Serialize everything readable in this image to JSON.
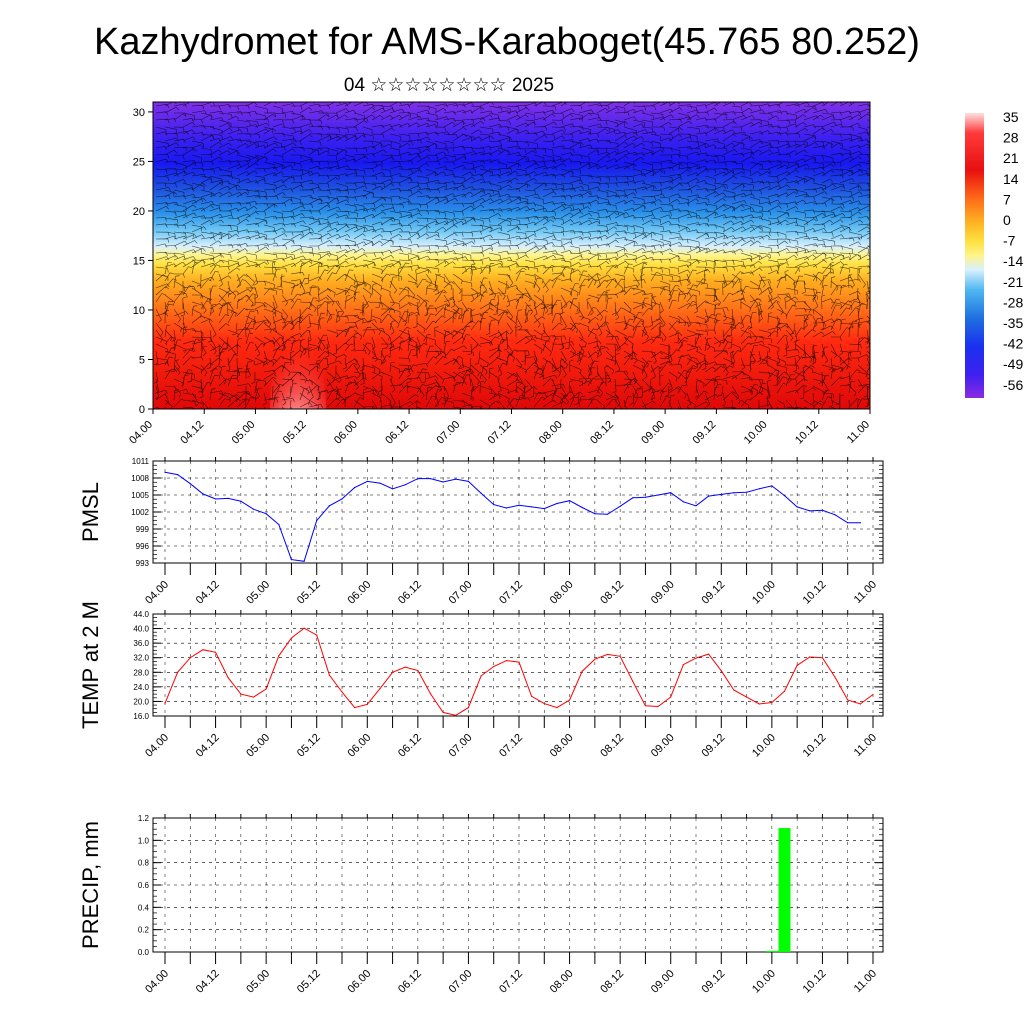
{
  "title": "Kazhydromet for AMS-Karaboget(45.765 80.252)",
  "subtitle": "04 ☆☆☆☆☆☆☆☆ 2025",
  "chart_data": [
    {
      "type": "heatmap",
      "name": "cross-section",
      "x_ticks": [
        "04.00",
        "04.12",
        "05.00",
        "05.12",
        "06.00",
        "06.12",
        "07.00",
        "07.12",
        "08.00",
        "08.12",
        "09.00",
        "09.12",
        "10.00",
        "10.12",
        "11.00"
      ],
      "y_ticks": [
        "0",
        "5",
        "10",
        "15",
        "20",
        "25",
        "30"
      ],
      "ylim": [
        0,
        31
      ],
      "colorbar": {
        "labels": [
          "35",
          "28",
          "21",
          "14",
          "7",
          "0",
          "-7",
          "-14",
          "-21",
          "-28",
          "-35",
          "-42",
          "-49",
          "-56"
        ],
        "colors": [
          "#ffd0d0",
          "#ff3030",
          "#e81010",
          "#f05020",
          "#ff9a20",
          "#ffd030",
          "#fff070",
          "#c0e8ff",
          "#40b8f0",
          "#1e80e0",
          "#1e40e0",
          "#2020f0",
          "#6a20f0",
          "#8a2be2"
        ]
      }
    },
    {
      "type": "line",
      "ylabel": "PMSL",
      "ylim": [
        993,
        1011
      ],
      "y_ticks": [
        "1011",
        "1008",
        "1005",
        "1002",
        "999",
        "996",
        "993"
      ],
      "x_ticks": [
        "04.00",
        "04.12",
        "05.00",
        "05.12",
        "06.00",
        "06.12",
        "07.00",
        "07.12",
        "08.00",
        "08.12",
        "09.00",
        "09.12",
        "10.00",
        "10.12",
        "11.00"
      ],
      "color": "#0000ff",
      "x": [
        0,
        3,
        6,
        9,
        12,
        15,
        18,
        21,
        24,
        27,
        30,
        33,
        36,
        39,
        42,
        45,
        48,
        51,
        54,
        57,
        60,
        63,
        66,
        69,
        72,
        75,
        78,
        81,
        84,
        87,
        90,
        93,
        96,
        99,
        102,
        105,
        108,
        111,
        114,
        117,
        120,
        123,
        126,
        129,
        132,
        135,
        138,
        141,
        144,
        147,
        150,
        153,
        156,
        159,
        162,
        165,
        168
      ],
      "values": [
        1009,
        1008.6,
        1007,
        1005.2,
        1004.3,
        1004.4,
        1003.9,
        1002.5,
        1001.7,
        999.8,
        993.6,
        993.3,
        1000.5,
        1003.1,
        1004.3,
        1006.3,
        1007.4,
        1007.1,
        1006.1,
        1006.8,
        1007.9,
        1007.9,
        1007.3,
        1007.8,
        1007.4,
        1005.3,
        1003.3,
        1002.7,
        1003.2,
        1002.9,
        1002.6,
        1003.5,
        1004,
        1002.8,
        1001.7,
        1001.6,
        1003,
        1004.5,
        1004.6,
        1005,
        1005.4,
        1003.8,
        1003.1,
        1004.8,
        1005.1,
        1005.4,
        1005.5,
        1006.1,
        1006.6,
        1004.9,
        1002.9,
        1002.2,
        1002.3,
        1001.5,
        1000.1,
        1000.1,
        null
      ]
    },
    {
      "type": "line",
      "ylabel": "TEMP at 2 M",
      "ylim": [
        16,
        44
      ],
      "y_ticks": [
        "44.0",
        "40.0",
        "36.0",
        "32.0",
        "28.0",
        "24.0",
        "20.0",
        "16.0"
      ],
      "x_ticks": [
        "04.00",
        "04.12",
        "05.00",
        "05.12",
        "06.00",
        "06.12",
        "07.00",
        "07.12",
        "08.00",
        "08.12",
        "09.00",
        "09.12",
        "10.00",
        "10.12",
        "11.00"
      ],
      "color": "#ff0000",
      "x": [
        0,
        3,
        6,
        9,
        12,
        15,
        18,
        21,
        24,
        27,
        30,
        33,
        36,
        39,
        42,
        45,
        48,
        51,
        54,
        57,
        60,
        63,
        66,
        69,
        72,
        75,
        78,
        81,
        84,
        87,
        90,
        93,
        96,
        99,
        102,
        105,
        108,
        111,
        114,
        117,
        120,
        123,
        126,
        129,
        132,
        135,
        138,
        141,
        144,
        147,
        150,
        153,
        156,
        159,
        162,
        165,
        168
      ],
      "values": [
        19.5,
        28,
        32,
        34.2,
        33.5,
        26.5,
        22,
        21.2,
        23.4,
        32.5,
        37.4,
        40.1,
        38.2,
        27.2,
        22.6,
        18.3,
        19.2,
        23.5,
        28,
        29.4,
        28.5,
        22.1,
        17,
        16.2,
        18.3,
        27,
        29.6,
        31.2,
        30.8,
        21.4,
        19.4,
        18.3,
        20.4,
        28.3,
        31.6,
        32.9,
        32.4,
        25.5,
        18.8,
        18.6,
        21.2,
        30.1,
        31.9,
        33,
        28.4,
        23.1,
        21.2,
        19.3,
        19.7,
        22.8,
        29.9,
        32.2,
        32,
        26.6,
        20.4,
        19.3,
        21.9
      ]
    },
    {
      "type": "bar",
      "ylabel": "PRECIP, mm",
      "ylim": [
        0,
        1.2
      ],
      "y_ticks": [
        "1.2",
        "1.0",
        "0.8",
        "0.6",
        "0.4",
        "0.2",
        "0.0"
      ],
      "x_ticks": [
        "04.00",
        "04.12",
        "05.00",
        "05.12",
        "06.00",
        "06.12",
        "07.00",
        "07.12",
        "08.00",
        "08.12",
        "09.00",
        "09.12",
        "10.00",
        "10.12",
        "11.00"
      ],
      "color": "#00ff00",
      "x": [
        144,
        147
      ],
      "values": [
        0.01,
        1.11
      ]
    }
  ]
}
